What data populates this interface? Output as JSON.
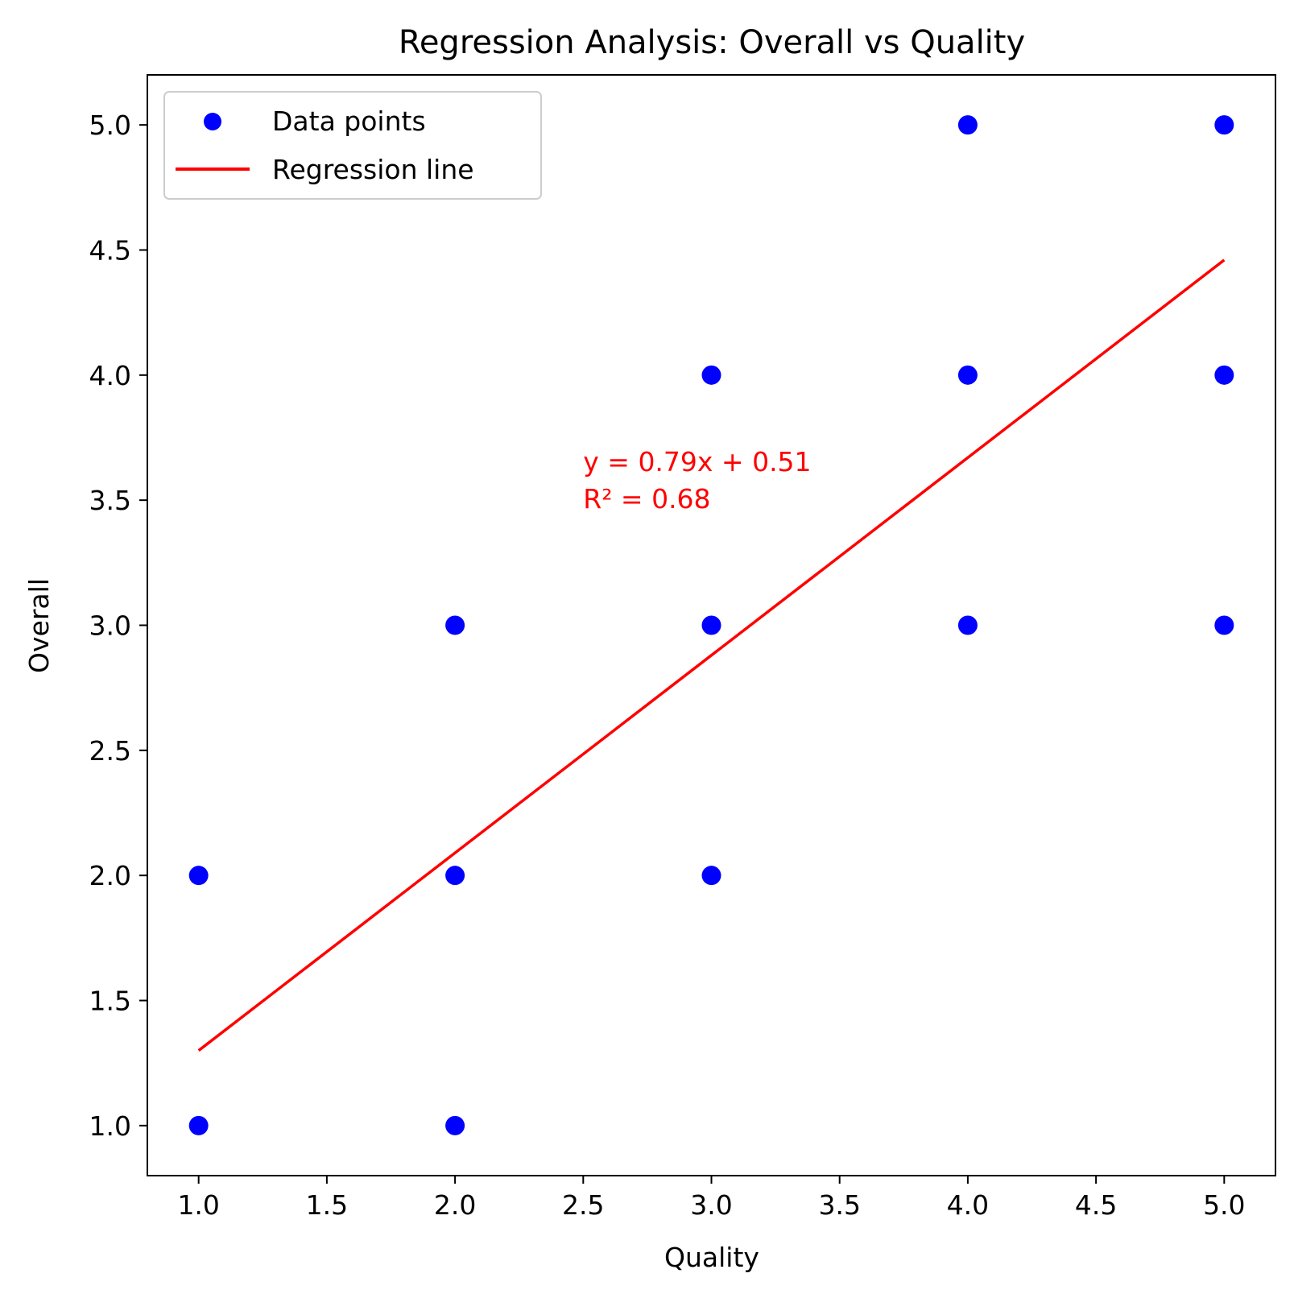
{
  "chart_data": {
    "type": "scatter",
    "title": "Regression Analysis: Overall vs Quality",
    "xlabel": "Quality",
    "ylabel": "Overall",
    "xlim": [
      0.8,
      5.2
    ],
    "ylim": [
      0.8,
      5.2
    ],
    "xticks": [
      "1.0",
      "1.5",
      "2.0",
      "2.5",
      "3.0",
      "3.5",
      "4.0",
      "4.5",
      "5.0"
    ],
    "yticks": [
      "1.0",
      "1.5",
      "2.0",
      "2.5",
      "3.0",
      "3.5",
      "4.0",
      "4.5",
      "5.0"
    ],
    "grid": false,
    "legend_position": "top-left",
    "series": [
      {
        "name": "Data points",
        "kind": "scatter",
        "color": "#0000ff",
        "x": [
          1,
          1,
          2,
          2,
          2,
          3,
          3,
          3,
          4,
          4,
          4,
          5,
          5,
          5
        ],
        "y": [
          1,
          2,
          1,
          2,
          3,
          2,
          3,
          4,
          3,
          4,
          5,
          3,
          4,
          5
        ]
      },
      {
        "name": "Regression line",
        "kind": "line",
        "color": "#ff0000",
        "x": [
          1,
          5
        ],
        "y": [
          1.3,
          4.46
        ]
      }
    ],
    "annotation": {
      "lines": [
        "y = 0.79x + 0.51",
        "R² = 0.68"
      ],
      "x": 2.5,
      "y": 3.5,
      "color": "#ff0000"
    }
  }
}
